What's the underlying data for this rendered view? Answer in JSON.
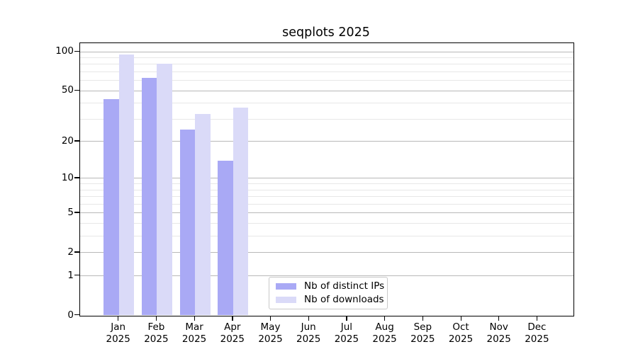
{
  "chart_data": {
    "type": "bar",
    "title": "seqplots 2025",
    "categories": [
      "Jan",
      "Feb",
      "Mar",
      "Apr",
      "May",
      "Jun",
      "Jul",
      "Aug",
      "Sep",
      "Oct",
      "Nov",
      "Dec"
    ],
    "year_label": "2025",
    "series": [
      {
        "name": "Nb of distinct IPs",
        "color": "#a9a9f5",
        "values": [
          43,
          63,
          25,
          14,
          null,
          null,
          null,
          null,
          null,
          null,
          null,
          null
        ]
      },
      {
        "name": "Nb of downloads",
        "color": "#dadaf8",
        "values": [
          95,
          81,
          33,
          37,
          null,
          null,
          null,
          null,
          null,
          null,
          null,
          null
        ]
      }
    ],
    "y_axis": {
      "scale": "log1p",
      "range": [
        0,
        100
      ],
      "major_ticks": [
        0,
        1,
        2,
        5,
        10,
        20,
        50,
        100
      ],
      "minor_gridlines": [
        3,
        4,
        6,
        7,
        8,
        9,
        30,
        40,
        60,
        70,
        80,
        90
      ]
    },
    "x_axis": {
      "label_lines": 2
    },
    "grid": true,
    "legend_position": "lower-center-inside",
    "colors": {
      "major_grid": "#b8b8b8",
      "minor_grid": "#e7e7e7",
      "spine": "#000000",
      "background": "#ffffff"
    }
  }
}
